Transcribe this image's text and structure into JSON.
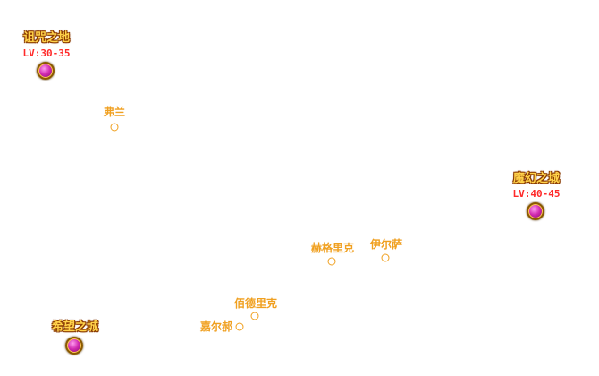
{
  "map": {
    "cities": [
      {
        "id": "curse",
        "name": "诅咒之地",
        "level": "LV:30-35"
      },
      {
        "id": "illusion",
        "name": "魔幻之城",
        "level": "LV:40-45"
      },
      {
        "id": "hope",
        "name": "希望之城"
      }
    ],
    "towns": [
      {
        "id": "fulan",
        "name": "弗兰"
      },
      {
        "id": "helalike",
        "name": "赫格里克"
      },
      {
        "id": "yiersa",
        "name": "伊尔萨"
      },
      {
        "id": "baidelike",
        "name": "佰德里克"
      },
      {
        "id": "jiaerhe",
        "name": "嘉尔郝"
      }
    ]
  }
}
